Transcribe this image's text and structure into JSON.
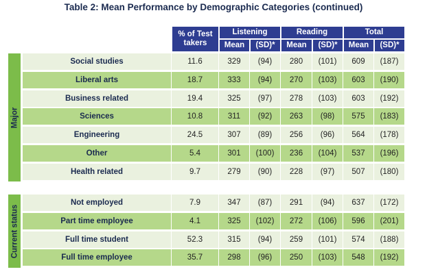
{
  "title": "Table 2: Mean Performance by Demographic Categories (continued)",
  "headers": {
    "pct": "% of Test takers",
    "listening": "Listening",
    "reading": "Reading",
    "total": "Total",
    "mean": "Mean",
    "sd": "(SD)*"
  },
  "groups": [
    {
      "name": "Major",
      "rows": [
        {
          "label": "Social studies",
          "pct": "11.6",
          "lm": "329",
          "lsd": "(94)",
          "rm": "280",
          "rsd": "(101)",
          "tm": "609",
          "tsd": "(187)"
        },
        {
          "label": "Liberal arts",
          "pct": "18.7",
          "lm": "333",
          "lsd": "(94)",
          "rm": "270",
          "rsd": "(103)",
          "tm": "603",
          "tsd": "(190)"
        },
        {
          "label": "Business related",
          "pct": "19.4",
          "lm": "325",
          "lsd": "(97)",
          "rm": "278",
          "rsd": "(103)",
          "tm": "603",
          "tsd": "(192)"
        },
        {
          "label": "Sciences",
          "pct": "10.8",
          "lm": "311",
          "lsd": "(92)",
          "rm": "263",
          "rsd": "(98)",
          "tm": "575",
          "tsd": "(183)"
        },
        {
          "label": "Engineering",
          "pct": "24.5",
          "lm": "307",
          "lsd": "(89)",
          "rm": "256",
          "rsd": "(96)",
          "tm": "564",
          "tsd": "(178)"
        },
        {
          "label": "Other",
          "pct": "5.4",
          "lm": "301",
          "lsd": "(100)",
          "rm": "236",
          "rsd": "(104)",
          "tm": "537",
          "tsd": "(196)"
        },
        {
          "label": "Health related",
          "pct": "9.7",
          "lm": "279",
          "lsd": "(90)",
          "rm": "228",
          "rsd": "(97)",
          "tm": "507",
          "tsd": "(180)"
        }
      ]
    },
    {
      "name": "Current status",
      "rows": [
        {
          "label": "Not employed",
          "pct": "7.9",
          "lm": "347",
          "lsd": "(87)",
          "rm": "291",
          "rsd": "(94)",
          "tm": "637",
          "tsd": "(172)"
        },
        {
          "label": "Part time employee",
          "pct": "4.1",
          "lm": "325",
          "lsd": "(102)",
          "rm": "272",
          "rsd": "(106)",
          "tm": "596",
          "tsd": "(201)"
        },
        {
          "label": "Full time student",
          "pct": "52.3",
          "lm": "315",
          "lsd": "(94)",
          "rm": "259",
          "rsd": "(101)",
          "tm": "574",
          "tsd": "(188)"
        },
        {
          "label": "Full time employee",
          "pct": "35.7",
          "lm": "298",
          "lsd": "(96)",
          "rm": "250",
          "rsd": "(103)",
          "tm": "548",
          "tsd": "(192)"
        }
      ]
    }
  ]
}
